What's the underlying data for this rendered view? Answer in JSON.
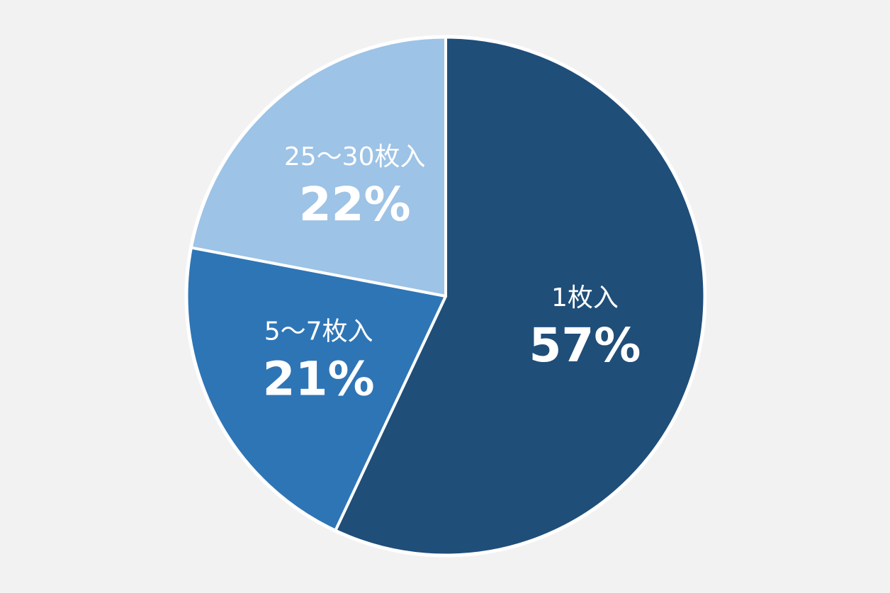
{
  "chart_data": {
    "type": "pie",
    "categories": [
      "1枚入",
      "5〜7枚入",
      "25〜30枚入"
    ],
    "values": [
      57,
      21,
      22
    ],
    "value_labels": [
      "57%",
      "21%",
      "22%"
    ],
    "colors": [
      "#1f4e79",
      "#2e75b6",
      "#9dc3e6"
    ]
  }
}
